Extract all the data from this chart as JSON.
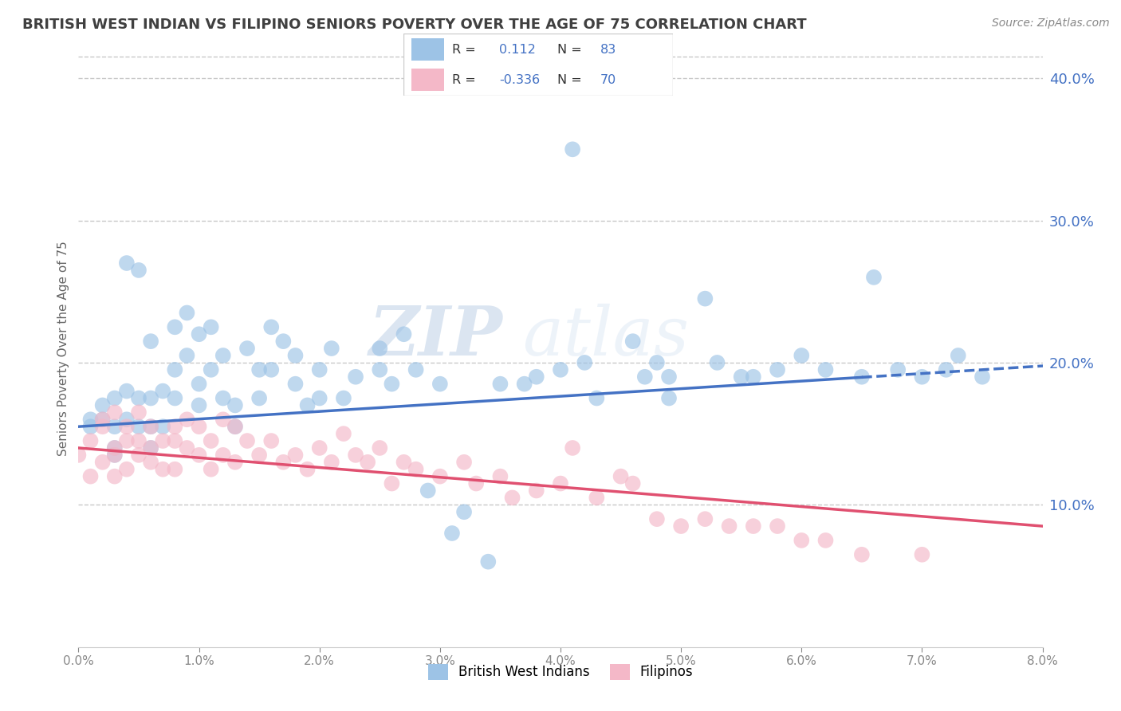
{
  "title": "BRITISH WEST INDIAN VS FILIPINO SENIORS POVERTY OVER THE AGE OF 75 CORRELATION CHART",
  "source": "Source: ZipAtlas.com",
  "ylabel": "Seniors Poverty Over the Age of 75",
  "xlim": [
    0.0,
    0.08
  ],
  "ylim": [
    0.0,
    0.42
  ],
  "xticks": [
    0.0,
    0.01,
    0.02,
    0.03,
    0.04,
    0.05,
    0.06,
    0.07,
    0.08
  ],
  "xticklabels": [
    "0.0%",
    "1.0%",
    "2.0%",
    "3.0%",
    "4.0%",
    "5.0%",
    "6.0%",
    "7.0%",
    "8.0%"
  ],
  "yticks_right": [
    0.1,
    0.2,
    0.3,
    0.4
  ],
  "ytick_right_labels": [
    "10.0%",
    "20.0%",
    "30.0%",
    "40.0%"
  ],
  "right_axis_color": "#4472c4",
  "grid_color": "#c8c8c8",
  "bwi_color": "#9dc3e6",
  "filipino_color": "#f4b8c8",
  "bwi_line_color": "#4472c4",
  "filipino_line_color": "#e05070",
  "legend_label_bwi": "British West Indians",
  "legend_label_fil": "Filipinos",
  "watermark_zip": "ZIP",
  "watermark_atlas": "atlas",
  "title_color": "#404040",
  "title_fontsize": 13,
  "bwi_x": [
    0.001,
    0.001,
    0.002,
    0.002,
    0.003,
    0.003,
    0.003,
    0.003,
    0.004,
    0.004,
    0.004,
    0.005,
    0.005,
    0.005,
    0.006,
    0.006,
    0.006,
    0.006,
    0.007,
    0.007,
    0.008,
    0.008,
    0.008,
    0.009,
    0.009,
    0.01,
    0.01,
    0.01,
    0.011,
    0.011,
    0.012,
    0.012,
    0.013,
    0.013,
    0.014,
    0.015,
    0.015,
    0.016,
    0.016,
    0.017,
    0.018,
    0.018,
    0.019,
    0.02,
    0.02,
    0.021,
    0.022,
    0.023,
    0.025,
    0.025,
    0.027,
    0.028,
    0.03,
    0.031,
    0.035,
    0.037,
    0.038,
    0.04,
    0.043,
    0.046,
    0.049,
    0.052,
    0.055,
    0.058,
    0.06,
    0.062,
    0.065,
    0.066,
    0.068,
    0.07,
    0.072,
    0.073,
    0.075,
    0.047,
    0.048,
    0.049,
    0.041,
    0.042,
    0.053,
    0.056,
    0.026,
    0.029,
    0.032,
    0.034
  ],
  "bwi_y": [
    0.16,
    0.155,
    0.17,
    0.16,
    0.175,
    0.155,
    0.14,
    0.135,
    0.27,
    0.18,
    0.16,
    0.265,
    0.175,
    0.155,
    0.215,
    0.175,
    0.155,
    0.14,
    0.18,
    0.155,
    0.225,
    0.195,
    0.175,
    0.235,
    0.205,
    0.22,
    0.185,
    0.17,
    0.225,
    0.195,
    0.205,
    0.175,
    0.17,
    0.155,
    0.21,
    0.195,
    0.175,
    0.225,
    0.195,
    0.215,
    0.205,
    0.185,
    0.17,
    0.195,
    0.175,
    0.21,
    0.175,
    0.19,
    0.21,
    0.195,
    0.22,
    0.195,
    0.185,
    0.08,
    0.185,
    0.185,
    0.19,
    0.195,
    0.175,
    0.215,
    0.19,
    0.245,
    0.19,
    0.195,
    0.205,
    0.195,
    0.19,
    0.26,
    0.195,
    0.19,
    0.195,
    0.205,
    0.19,
    0.19,
    0.2,
    0.175,
    0.35,
    0.2,
    0.2,
    0.19,
    0.185,
    0.11,
    0.095,
    0.06
  ],
  "fil_x": [
    0.0,
    0.001,
    0.001,
    0.002,
    0.002,
    0.002,
    0.003,
    0.003,
    0.003,
    0.003,
    0.004,
    0.004,
    0.004,
    0.005,
    0.005,
    0.005,
    0.006,
    0.006,
    0.006,
    0.007,
    0.007,
    0.008,
    0.008,
    0.008,
    0.009,
    0.009,
    0.01,
    0.01,
    0.011,
    0.011,
    0.012,
    0.012,
    0.013,
    0.013,
    0.014,
    0.015,
    0.016,
    0.017,
    0.018,
    0.019,
    0.02,
    0.021,
    0.022,
    0.023,
    0.024,
    0.025,
    0.026,
    0.027,
    0.028,
    0.03,
    0.032,
    0.033,
    0.035,
    0.036,
    0.038,
    0.04,
    0.041,
    0.043,
    0.045,
    0.046,
    0.048,
    0.05,
    0.052,
    0.054,
    0.056,
    0.058,
    0.06,
    0.062,
    0.065,
    0.07
  ],
  "fil_y": [
    0.135,
    0.145,
    0.12,
    0.16,
    0.155,
    0.13,
    0.165,
    0.14,
    0.135,
    0.12,
    0.155,
    0.145,
    0.125,
    0.165,
    0.145,
    0.135,
    0.155,
    0.14,
    0.13,
    0.145,
    0.125,
    0.155,
    0.145,
    0.125,
    0.16,
    0.14,
    0.155,
    0.135,
    0.145,
    0.125,
    0.16,
    0.135,
    0.155,
    0.13,
    0.145,
    0.135,
    0.145,
    0.13,
    0.135,
    0.125,
    0.14,
    0.13,
    0.15,
    0.135,
    0.13,
    0.14,
    0.115,
    0.13,
    0.125,
    0.12,
    0.13,
    0.115,
    0.12,
    0.105,
    0.11,
    0.115,
    0.14,
    0.105,
    0.12,
    0.115,
    0.09,
    0.085,
    0.09,
    0.085,
    0.085,
    0.085,
    0.075,
    0.075,
    0.065,
    0.065
  ]
}
